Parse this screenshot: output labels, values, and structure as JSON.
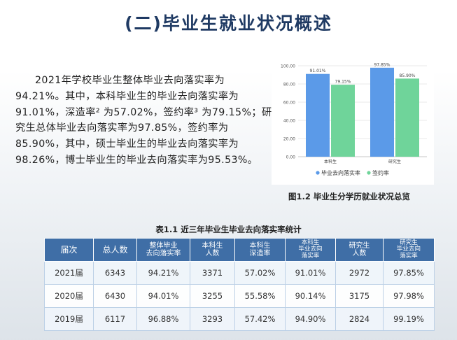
{
  "title": "(二)毕业生就业状况概述",
  "paragraph_lines": [
    "2021年学校毕业生整体毕业去向落实率为",
    "94.21%。其中，本科毕业生的毕业去向落实率为",
    "91.01%，深造率² 为57.02%，签约率³ 为79.15%；研",
    "究生总体毕业去向落实率为97.85%，签约率为",
    "85.90%，其中，硕士毕业生的毕业去向落实率为",
    "98.26%，博士毕业生的毕业去向落实率为95.53%。"
  ],
  "figure_caption": "图1.2  毕业生分学历就业状况总览",
  "chart_data": {
    "type": "bar",
    "categories": [
      "本科生",
      "研究生"
    ],
    "series": [
      {
        "name": "毕业去向落实率",
        "values": [
          91.01,
          97.85
        ],
        "labels": [
          "91.01%",
          "97.85%"
        ],
        "color": "#5b9ae8"
      },
      {
        "name": "签约率",
        "values": [
          79.15,
          85.9
        ],
        "labels": [
          "79.15%",
          "85.90%"
        ],
        "color": "#6fd49a"
      }
    ],
    "ylim": [
      0,
      100
    ],
    "yticks": [
      "0.00",
      "20.00",
      "40.00",
      "60.00",
      "80.00",
      "100.00"
    ],
    "ytick_values": [
      0,
      20,
      40,
      60,
      80,
      100
    ],
    "grid": true,
    "legend": "bottom"
  },
  "table": {
    "caption": "表1.1  近三年毕业生毕业去向落实率统计",
    "headers": [
      [
        "届次"
      ],
      [
        "总人数"
      ],
      [
        "整体毕业",
        "去向落实率"
      ],
      [
        "本科生",
        "人数"
      ],
      [
        "本科生",
        "深造率"
      ],
      [
        "本科生",
        "毕业去向",
        "落实率"
      ],
      [
        "研究生",
        "人数"
      ],
      [
        "研究生",
        "毕业去向",
        "落实率"
      ]
    ],
    "rows": [
      [
        "2021届",
        "6343",
        "94.21%",
        "3371",
        "57.02%",
        "91.01%",
        "2972",
        "97.85%"
      ],
      [
        "2020届",
        "6430",
        "94.01%",
        "3255",
        "55.58%",
        "90.14%",
        "3175",
        "97.98%"
      ],
      [
        "2019届",
        "6117",
        "96.88%",
        "3293",
        "57.42%",
        "94.90%",
        "2824",
        "99.19%"
      ]
    ]
  }
}
